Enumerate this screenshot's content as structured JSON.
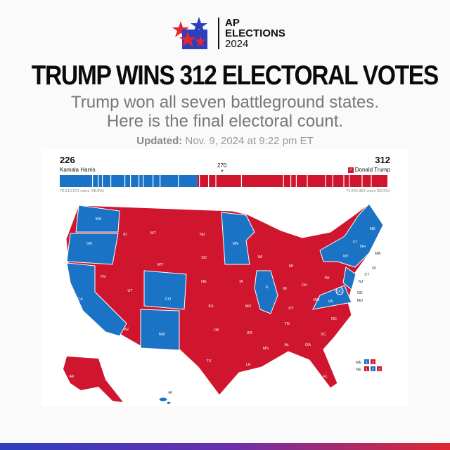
{
  "logo": {
    "line1": "AP",
    "line2": "ELECTIONS",
    "line3": "2024"
  },
  "headline": "TRUMP WINS 312 ELECTORAL VOTES",
  "subtitle": {
    "line1": "Trump won all seven battleground states.",
    "line2": "Here is the final electoral count."
  },
  "updated": {
    "label": "Updated:",
    "value": "Nov. 9, 2024 at 9:22 pm ET"
  },
  "tally": {
    "harris": {
      "votes": "226",
      "name": "Kamala Harris",
      "popular": "70,910,573 votes (48.0%)",
      "color": "#1a73c4"
    },
    "trump": {
      "votes": "312",
      "name": "Donald Trump",
      "popular": "74,644,360 votes (50.5%)",
      "color": "#d0152f",
      "winner_check": "✓"
    },
    "threshold": "270",
    "total": 538
  },
  "map": {
    "blue_states": [
      "WA",
      "OR",
      "CA",
      "CO",
      "NM",
      "MN",
      "IL",
      "VA",
      "NY",
      "VT",
      "NH",
      "ME",
      "MA",
      "RI",
      "CT",
      "NJ",
      "DE",
      "MD",
      "DC",
      "HI"
    ],
    "labels": [
      "WA",
      "OR",
      "CA",
      "NV",
      "ID",
      "MT",
      "WY",
      "UT",
      "AZ",
      "CO",
      "NM",
      "ND",
      "SD",
      "NE",
      "KS",
      "OK",
      "TX",
      "MN",
      "IA",
      "MO",
      "AR",
      "LA",
      "WI",
      "IL",
      "MI",
      "IN",
      "OH",
      "KY",
      "TN",
      "MS",
      "AL",
      "GA",
      "FL",
      "SC",
      "NC",
      "VA",
      "WV",
      "PA",
      "NY",
      "VT",
      "NH",
      "ME",
      "MA",
      "RI",
      "CT",
      "NJ",
      "DE",
      "MD",
      "AK",
      "HI",
      "DC"
    ],
    "split_states": [
      {
        "state": "ME",
        "districts": [
          {
            "n": "1",
            "party": "D"
          },
          {
            "n": "2",
            "party": "R"
          }
        ]
      },
      {
        "state": "NE",
        "districts": [
          {
            "n": "1",
            "party": "R"
          },
          {
            "n": "2",
            "party": "D"
          },
          {
            "n": "3",
            "party": "R"
          }
        ]
      }
    ]
  }
}
